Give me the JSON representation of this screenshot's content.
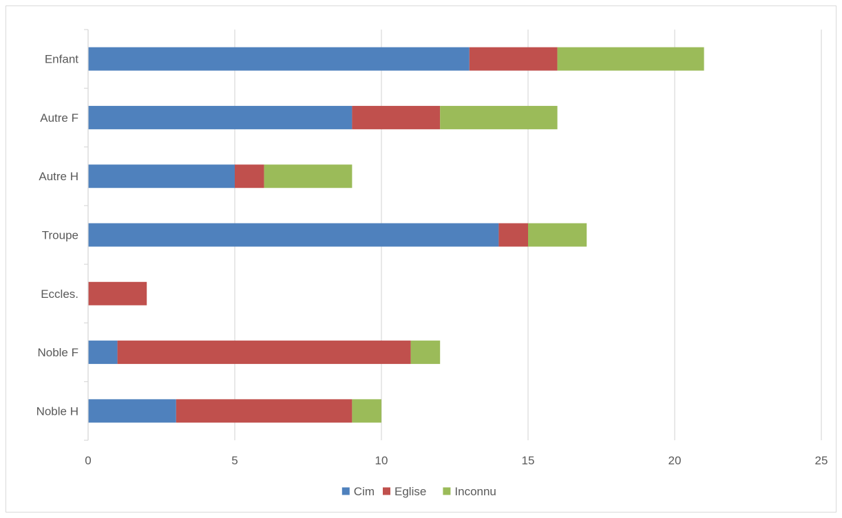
{
  "chart_data": {
    "type": "bar",
    "orientation": "horizontal",
    "stacked": true,
    "title": "",
    "xlabel": "",
    "ylabel": "",
    "categories": [
      "Noble H",
      "Noble F",
      "Eccles.",
      "Troupe",
      "Autre H",
      "Autre F",
      "Enfant"
    ],
    "series": [
      {
        "name": "Cim",
        "color": "#4f81bd",
        "values": [
          3,
          1,
          0,
          14,
          5,
          9,
          13
        ]
      },
      {
        "name": "Eglise",
        "color": "#c0504d",
        "values": [
          6,
          10,
          2,
          1,
          1,
          3,
          3
        ]
      },
      {
        "name": "Inconnu",
        "color": "#9bbb59",
        "values": [
          1,
          1,
          0,
          2,
          3,
          4,
          5
        ]
      }
    ],
    "xlim": [
      0,
      25
    ],
    "xticks": [
      0,
      5,
      10,
      15,
      20,
      25
    ],
    "grid": true,
    "legend_position": "bottom"
  }
}
